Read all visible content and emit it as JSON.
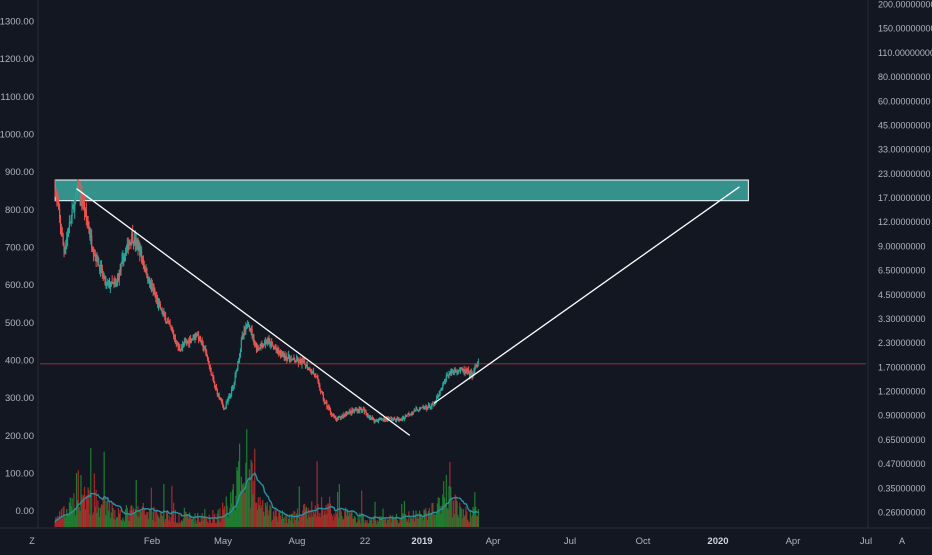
{
  "colors": {
    "background": "#131722",
    "up": "#26a69a",
    "down": "#ef5350",
    "vol_up": "#1e7d32",
    "vol_down": "#a52a2a",
    "zone_fill": "#3fb3aa",
    "zone_stroke": "#ffffff",
    "trendline": "#ffffff",
    "price_line": "#c0392b",
    "vol_ma": "#2a8fa0",
    "axis_text": "#b2b5be"
  },
  "chart_data": {
    "type": "candlestick",
    "left_axis": {
      "ticks": [
        "1300.00",
        "1200.00",
        "1100.00",
        "1000.00",
        "900.00",
        "800.00",
        "700.00",
        "600.00",
        "500.00",
        "400.00",
        "300.00",
        "200.00",
        "100.00",
        "0.00"
      ],
      "range": [
        -30,
        1340
      ]
    },
    "right_axis": {
      "scale": "log",
      "ticks": [
        "200.00000000",
        "150.00000000",
        "110.00000000",
        "80.00000000",
        "60.00000000",
        "45.00000000",
        "33.00000000",
        "23.00000000",
        "17.00000000",
        "12.00000000",
        "9.00000000",
        "6.50000000",
        "4.50000000",
        "3.30000000",
        "2.30000000",
        "1.70000000",
        "1.20000000",
        "0.90000000",
        "0.65000000",
        "0.47000000",
        "0.35000000",
        "0.26000000"
      ]
    },
    "x_axis": {
      "labels": [
        "Feb",
        "May",
        "Aug",
        "22",
        "2019",
        "Apr",
        "Jul",
        "Oct",
        "2020",
        "Apr",
        "Jul"
      ],
      "bold_labels": [
        "2019",
        "2020"
      ],
      "range": [
        "2018-01-10",
        "2020-07-25"
      ]
    },
    "price_anchors": [
      [
        "2018-01-27",
        855
      ],
      [
        "2018-02-06",
        690
      ],
      [
        "2018-02-15",
        790
      ],
      [
        "2018-02-22",
        860
      ],
      [
        "2018-03-01",
        800
      ],
      [
        "2018-03-10",
        700
      ],
      [
        "2018-03-25",
        600
      ],
      [
        "2018-04-05",
        600
      ],
      [
        "2018-04-15",
        680
      ],
      [
        "2018-04-23",
        730
      ],
      [
        "2018-05-02",
        690
      ],
      [
        "2018-05-12",
        610
      ],
      [
        "2018-05-26",
        530
      ],
      [
        "2018-06-06",
        480
      ],
      [
        "2018-06-15",
        430
      ],
      [
        "2018-06-25",
        450
      ],
      [
        "2018-07-05",
        470
      ],
      [
        "2018-07-15",
        420
      ],
      [
        "2018-07-25",
        330
      ],
      [
        "2018-08-05",
        270
      ],
      [
        "2018-08-15",
        330
      ],
      [
        "2018-08-25",
        460
      ],
      [
        "2018-09-01",
        500
      ],
      [
        "2018-09-10",
        430
      ],
      [
        "2018-09-22",
        450
      ],
      [
        "2018-10-05",
        420
      ],
      [
        "2018-10-20",
        400
      ],
      [
        "2018-11-03",
        390
      ],
      [
        "2018-11-15",
        360
      ],
      [
        "2018-11-25",
        290
      ],
      [
        "2018-12-08",
        240
      ],
      [
        "2018-12-20",
        260
      ],
      [
        "2019-01-05",
        270
      ],
      [
        "2019-01-20",
        240
      ],
      [
        "2019-02-05",
        245
      ],
      [
        "2019-02-18",
        240
      ],
      [
        "2019-03-01",
        260
      ],
      [
        "2019-03-12",
        270
      ],
      [
        "2019-03-28",
        280
      ],
      [
        "2019-04-05",
        320
      ],
      [
        "2019-04-12",
        360
      ],
      [
        "2019-04-22",
        375
      ],
      [
        "2019-05-02",
        370
      ],
      [
        "2019-05-10",
        360
      ],
      [
        "2019-05-17",
        395
      ]
    ],
    "volume_anchors": [
      [
        "2018-01-27",
        8
      ],
      [
        "2018-02-15",
        22
      ],
      [
        "2018-02-22",
        48
      ],
      [
        "2018-03-10",
        28
      ],
      [
        "2018-04-10",
        15
      ],
      [
        "2018-05-10",
        18
      ],
      [
        "2018-06-10",
        12
      ],
      [
        "2018-07-10",
        10
      ],
      [
        "2018-08-01",
        14
      ],
      [
        "2018-08-15",
        38
      ],
      [
        "2018-09-01",
        55
      ],
      [
        "2018-09-15",
        20
      ],
      [
        "2018-10-15",
        10
      ],
      [
        "2018-11-20",
        22
      ],
      [
        "2018-12-20",
        14
      ],
      [
        "2019-01-20",
        8
      ],
      [
        "2019-02-20",
        10
      ],
      [
        "2019-03-20",
        14
      ],
      [
        "2019-04-10",
        38
      ],
      [
        "2019-05-01",
        15
      ],
      [
        "2019-05-17",
        14
      ]
    ],
    "volume_axis_max": 260,
    "last_price": 390,
    "zone": {
      "from": "2018-01-27",
      "to": "2020-03-15",
      "low": 823,
      "high": 878
    },
    "trendlines": [
      {
        "points": [
          [
            "2018-02-20",
            855
          ],
          [
            "2019-03-01",
            200
          ]
        ]
      },
      {
        "points": [
          [
            "2019-03-28",
            285
          ],
          [
            "2020-03-05",
            860
          ]
        ]
      }
    ]
  },
  "footer": {
    "left_badge": "Z",
    "right_badge": "A"
  }
}
